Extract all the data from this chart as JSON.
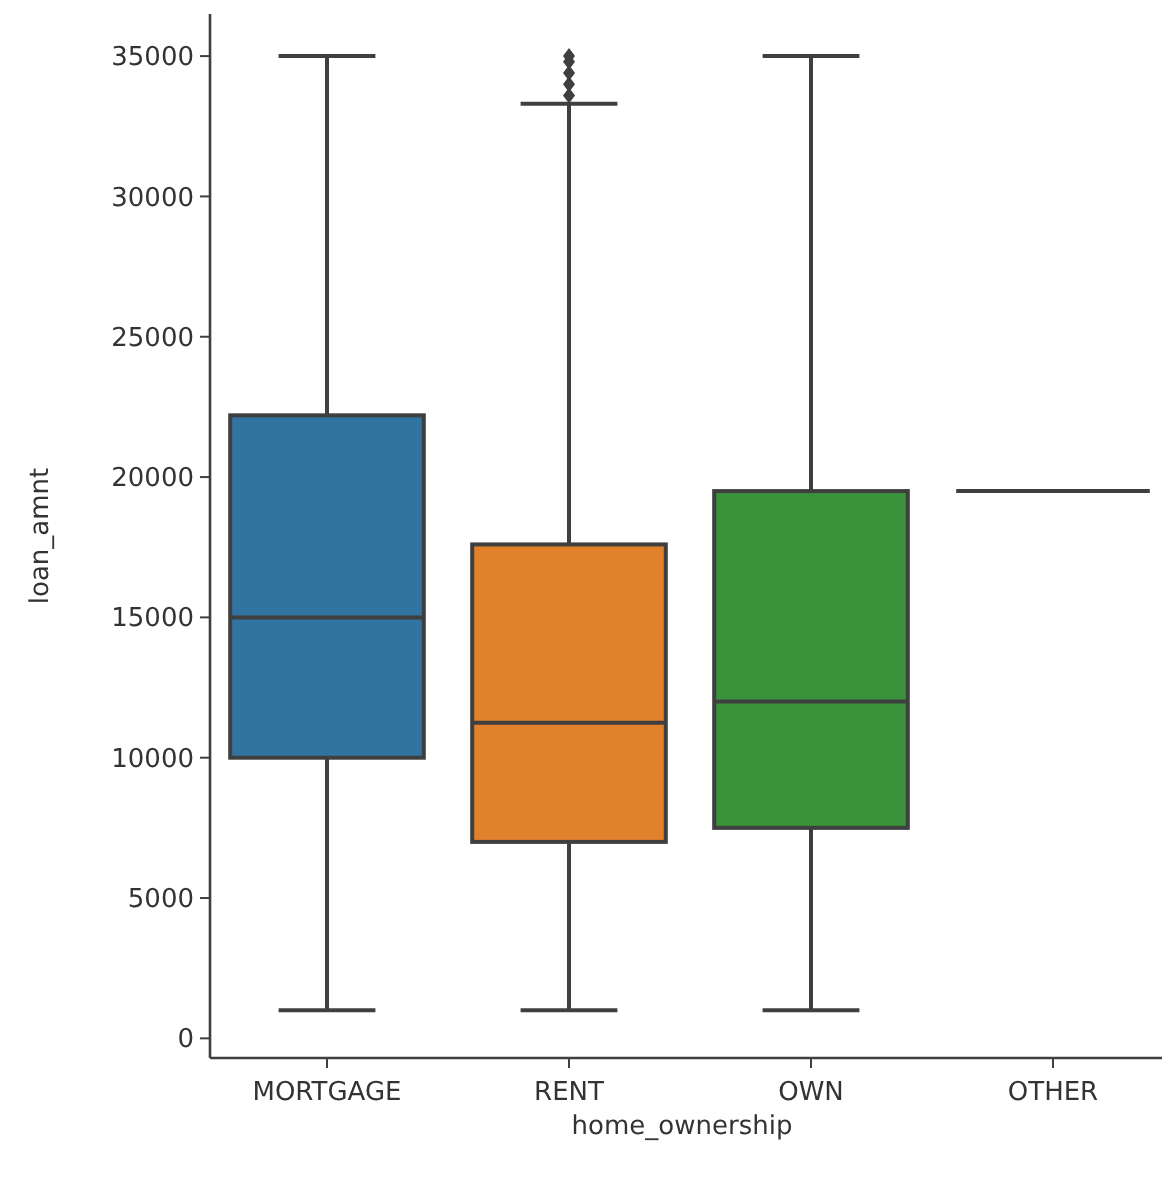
{
  "chart_data": {
    "type": "box",
    "xlabel": "home_ownership",
    "ylabel": "loan_amnt",
    "categories": [
      "MORTGAGE",
      "RENT",
      "OWN",
      "OTHER"
    ],
    "colors": [
      "#3274a1",
      "#e1812c",
      "#3a923a",
      "#3f3f3f"
    ],
    "boxes": [
      {
        "low": 1000,
        "q1": 10000,
        "median": 15000,
        "q3": 22200,
        "high": 35000
      },
      {
        "low": 1000,
        "q1": 7000,
        "median": 11250,
        "q3": 17600,
        "high": 33300,
        "outliers": [
          33600,
          34000,
          34400,
          34800,
          35000
        ]
      },
      {
        "low": 1000,
        "q1": 7500,
        "median": 12000,
        "q3": 19500,
        "high": 35000
      },
      {
        "low": 19500,
        "q1": 19500,
        "median": 19500,
        "q3": 19500,
        "high": 19500
      }
    ],
    "ylim": [
      -700,
      36500
    ],
    "yticks": [
      0,
      5000,
      10000,
      15000,
      20000,
      25000,
      30000,
      35000
    ],
    "grid": false
  }
}
